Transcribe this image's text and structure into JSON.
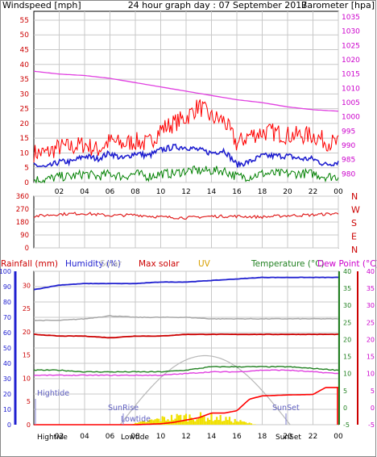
{
  "header": {
    "title": "24 hour graph day : 07 September 2017",
    "left_label": "Windspeed [mph]",
    "right_label": "Barometer [hpa]"
  },
  "colors": {
    "wind": "#ff0000",
    "gust": "#ff0000",
    "avg": "#2020d0",
    "calm": "#008000",
    "baro": "#e040e0",
    "dir": "#e02020",
    "hum": "#2020d0",
    "temp": "#208020",
    "dew": "#e040e0",
    "rain": "#ff0000",
    "solar": "#b0b0b0",
    "uv": "#e8c000",
    "grid": "#c8c8c8",
    "axis_left": "#cc0000",
    "axis_right": "#cc00cc"
  },
  "x_ticks": [
    "02",
    "04",
    "06",
    "08",
    "10",
    "12",
    "14",
    "16",
    "18",
    "20",
    "22",
    "00"
  ],
  "panel1": {
    "y_left_ticks": [
      "0",
      "5",
      "10",
      "15",
      "20",
      "25",
      "30",
      "35",
      "40",
      "45",
      "50",
      "55"
    ],
    "y_right_ticks": [
      "980",
      "985",
      "990",
      "995",
      "1000",
      "1005",
      "1010",
      "1015",
      "1020",
      "1025",
      "1030",
      "1035"
    ]
  },
  "panel2": {
    "y_ticks": [
      "0",
      "90",
      "180",
      "270",
      "360"
    ],
    "compass": [
      "N",
      "W",
      "S",
      "E",
      "N"
    ]
  },
  "panel3": {
    "legend": {
      "rain": "Rainfall (mm)",
      "hum": "Humidity (%)",
      "solar": "Solar",
      "maxsolar": "Max solar",
      "uv": "UV",
      "temp": "Temperature (°C)",
      "dew": "Dew Point (°C)"
    },
    "y_hum_ticks": [
      "0",
      "10",
      "20",
      "30",
      "40",
      "50",
      "60",
      "70",
      "80",
      "90",
      "100"
    ],
    "y_rain_ticks": [
      "0",
      "5",
      "10",
      "15",
      "20",
      "25",
      "30"
    ],
    "y_temp_ticks": [
      "-5",
      "0",
      "5",
      "10",
      "15",
      "20",
      "25",
      "30",
      "35",
      "40"
    ],
    "y_dew_ticks": [
      "-5",
      "0",
      "5",
      "10",
      "15",
      "20",
      "25",
      "30",
      "35",
      "40"
    ],
    "annotations": {
      "hightide": "Hightide",
      "sunrise": "SunRise",
      "lowtide": "Lowtide",
      "sunset": "SunSet",
      "tide_axis_1": "Hightide",
      "tide_axis_2": "Lowtide",
      "tide_axis_3": "SunSet"
    }
  },
  "chart_data": [
    {
      "type": "line",
      "title": "24 hour graph day : 07 September 2017",
      "x_range": [
        0,
        24
      ],
      "ylim": [
        0,
        58
      ],
      "y2lim": [
        977,
        1037
      ],
      "series": [
        {
          "name": "Windspeed [mph]",
          "x": [
            0,
            1,
            2,
            3,
            4,
            5,
            6,
            7,
            8,
            9,
            10,
            11,
            12,
            13,
            14,
            15,
            16,
            17,
            18,
            19,
            20,
            21,
            22,
            23,
            24
          ],
          "values": [
            6,
            5,
            7,
            7,
            9,
            8,
            10,
            8,
            10,
            9,
            11,
            12,
            12,
            11,
            10,
            11,
            6,
            7,
            9,
            9,
            9,
            8,
            8,
            6,
            7
          ]
        },
        {
          "name": "Wind gust",
          "x": [
            0,
            1,
            2,
            3,
            4,
            5,
            6,
            7,
            8,
            9,
            10,
            11,
            12,
            13,
            14,
            15,
            16,
            17,
            18,
            19,
            20,
            21,
            22,
            23,
            24
          ],
          "values": [
            10,
            10,
            12,
            12,
            13,
            11,
            14,
            13,
            14,
            13,
            18,
            20,
            22,
            26,
            22,
            21,
            13,
            16,
            17,
            17,
            16,
            16,
            16,
            14,
            13
          ]
        },
        {
          "name": "Wind calm",
          "x": [
            0,
            1,
            2,
            3,
            4,
            5,
            6,
            7,
            8,
            9,
            10,
            11,
            12,
            13,
            14,
            15,
            16,
            17,
            18,
            19,
            20,
            21,
            22,
            23,
            24
          ],
          "values": [
            1,
            1,
            2,
            2,
            3,
            2,
            3,
            2,
            3,
            2,
            3,
            3,
            4,
            4,
            4,
            4,
            2,
            2,
            3,
            3,
            3,
            3,
            3,
            2,
            2
          ]
        },
        {
          "name": "Barometer [hpa]",
          "x": [
            0,
            2,
            4,
            6,
            8,
            10,
            12,
            14,
            16,
            18,
            20,
            22,
            24
          ],
          "values": [
            1016,
            1015,
            1014.5,
            1013.5,
            1012,
            1010.5,
            1009,
            1007.5,
            1006,
            1005,
            1003.5,
            1002.5,
            1002
          ]
        }
      ]
    },
    {
      "type": "line",
      "x_range": [
        0,
        24
      ],
      "ylim": [
        0,
        360
      ],
      "series": [
        {
          "name": "Wind direction",
          "x": [
            0,
            2,
            4,
            6,
            8,
            10,
            12,
            14,
            16,
            18,
            20,
            22,
            24
          ],
          "values": [
            220,
            235,
            240,
            225,
            230,
            215,
            210,
            220,
            220,
            215,
            225,
            230,
            240
          ]
        }
      ]
    },
    {
      "type": "line",
      "x_range": [
        0,
        24
      ],
      "series": [
        {
          "name": "Humidity (%)",
          "x": [
            0,
            2,
            4,
            6,
            8,
            10,
            12,
            14,
            16,
            18,
            20,
            22,
            24
          ],
          "values": [
            88,
            91,
            92,
            92,
            92,
            93,
            93,
            94,
            95,
            96,
            96,
            96,
            96
          ]
        },
        {
          "name": "Temperature (°C)",
          "x": [
            0,
            2,
            4,
            6,
            8,
            10,
            12,
            14,
            16,
            18,
            20,
            22,
            24
          ],
          "values": [
            11,
            11,
            10.5,
            10.5,
            10.5,
            10.5,
            11,
            12,
            12,
            12,
            12,
            11.5,
            11
          ]
        },
        {
          "name": "Dew Point (°C)",
          "x": [
            0,
            2,
            4,
            6,
            8,
            10,
            12,
            14,
            16,
            18,
            20,
            22,
            24
          ],
          "values": [
            9.5,
            9.5,
            9.5,
            9.5,
            9.5,
            9.5,
            10,
            10.5,
            10.5,
            11,
            11,
            10.5,
            10
          ]
        },
        {
          "name": "Max solar",
          "x": [
            0,
            2,
            4,
            6,
            8,
            10,
            12,
            14,
            16,
            18,
            20,
            22,
            24
          ],
          "values": [
            21.5,
            21,
            21,
            20.5,
            21,
            21,
            21.5,
            21.5,
            21.5,
            21.5,
            21.5,
            21.5,
            21.5
          ]
        },
        {
          "name": "Solar",
          "x": [
            0,
            2,
            4,
            6,
            8,
            10,
            12,
            14,
            16,
            18,
            20,
            22,
            24
          ],
          "values": [
            68,
            68,
            69,
            71,
            70,
            70,
            70,
            69,
            69,
            69,
            69,
            69,
            69
          ]
        },
        {
          "name": "Rainfall (mm)",
          "x": [
            0,
            8,
            10,
            11,
            12,
            13,
            14,
            15,
            16,
            17,
            18,
            20,
            22,
            23,
            24
          ],
          "values": [
            0,
            0,
            0.2,
            0.5,
            1.0,
            1.5,
            2.5,
            2.5,
            3.0,
            5.5,
            6.2,
            6.4,
            6.5,
            8.0,
            8.0
          ]
        }
      ]
    }
  ]
}
